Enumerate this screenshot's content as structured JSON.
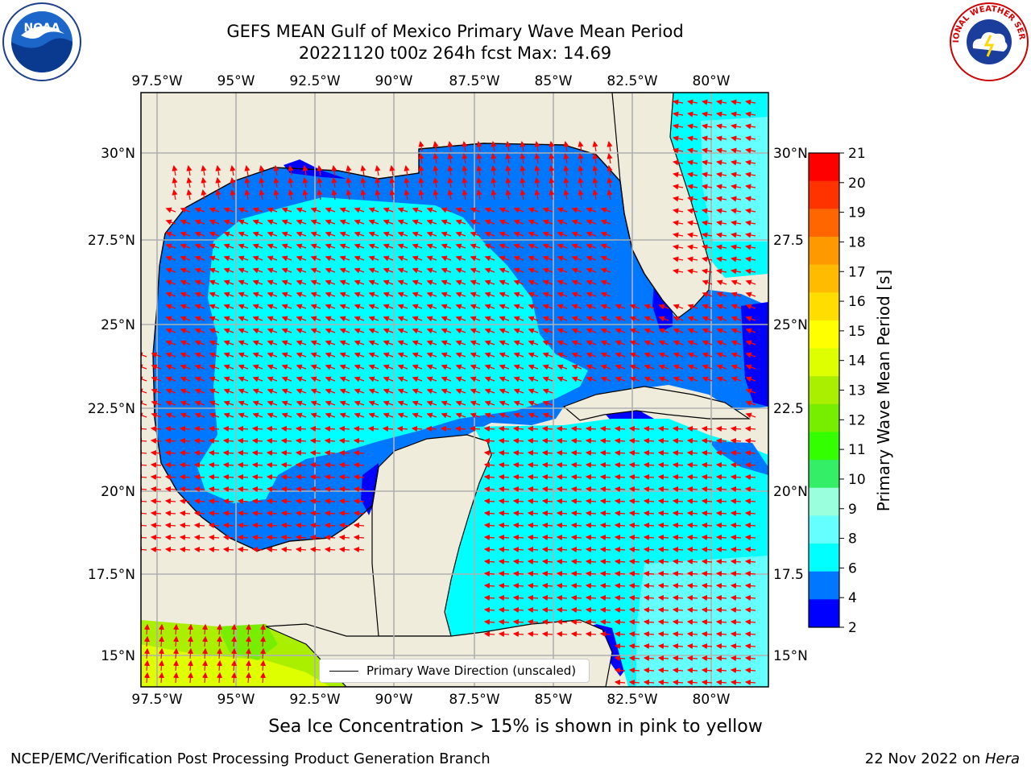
{
  "header": {
    "title_line1": "GEFS MEAN Gulf of Mexico Primary Wave Mean Period",
    "title_line2": "20221120 t00z 264h fcst   Max: 14.69"
  },
  "logos": {
    "left": {
      "icon": "noaa-logo",
      "text": "NOAA"
    },
    "right": {
      "icon": "nws-logo",
      "text": "NATIONAL WEATHER SERVICE"
    }
  },
  "map": {
    "lon_ticks": [
      "97.5°W",
      "95°W",
      "92.5°W",
      "90°W",
      "87.5°W",
      "85°W",
      "82.5°W",
      "80°W"
    ],
    "lat_ticks_left": [
      "30°N",
      "27.5°N",
      "25°N",
      "22.5°N",
      "20°N",
      "17.5°N",
      "15°N"
    ],
    "lat_ticks_right": [
      "30°N",
      "27.5",
      "25°N",
      "22.5",
      "20°N",
      "17.5",
      "15°N"
    ],
    "legend_label": "Primary Wave Direction (unscaled)",
    "colors": {
      "land": "#efecdc",
      "grid": "#b0b0b0",
      "arrow": "#ff0000"
    }
  },
  "colorbar": {
    "label": "Primary Wave Mean Period [s]",
    "ticks": [
      "21",
      "20",
      "19",
      "18",
      "17",
      "16",
      "15",
      "14",
      "13",
      "12",
      "11",
      "10",
      "9",
      "8",
      "6",
      "4",
      "2"
    ],
    "colors": [
      "#ff0000",
      "#ff3300",
      "#ff6600",
      "#ff9900",
      "#ffbb00",
      "#ffdd00",
      "#ffff00",
      "#ddff00",
      "#aaee00",
      "#77ee00",
      "#33ff00",
      "#33ee66",
      "#99ffdd",
      "#66ffff",
      "#00ffff",
      "#0077ff",
      "#0000ff"
    ]
  },
  "notes": {
    "sea_ice": "Sea Ice Concentration > 15% is shown in pink to yellow",
    "footer_left": "NCEP/EMC/Verification Post Processing Product Generation Branch",
    "footer_date": "22 Nov 2022 on ",
    "footer_host": "Hera"
  }
}
